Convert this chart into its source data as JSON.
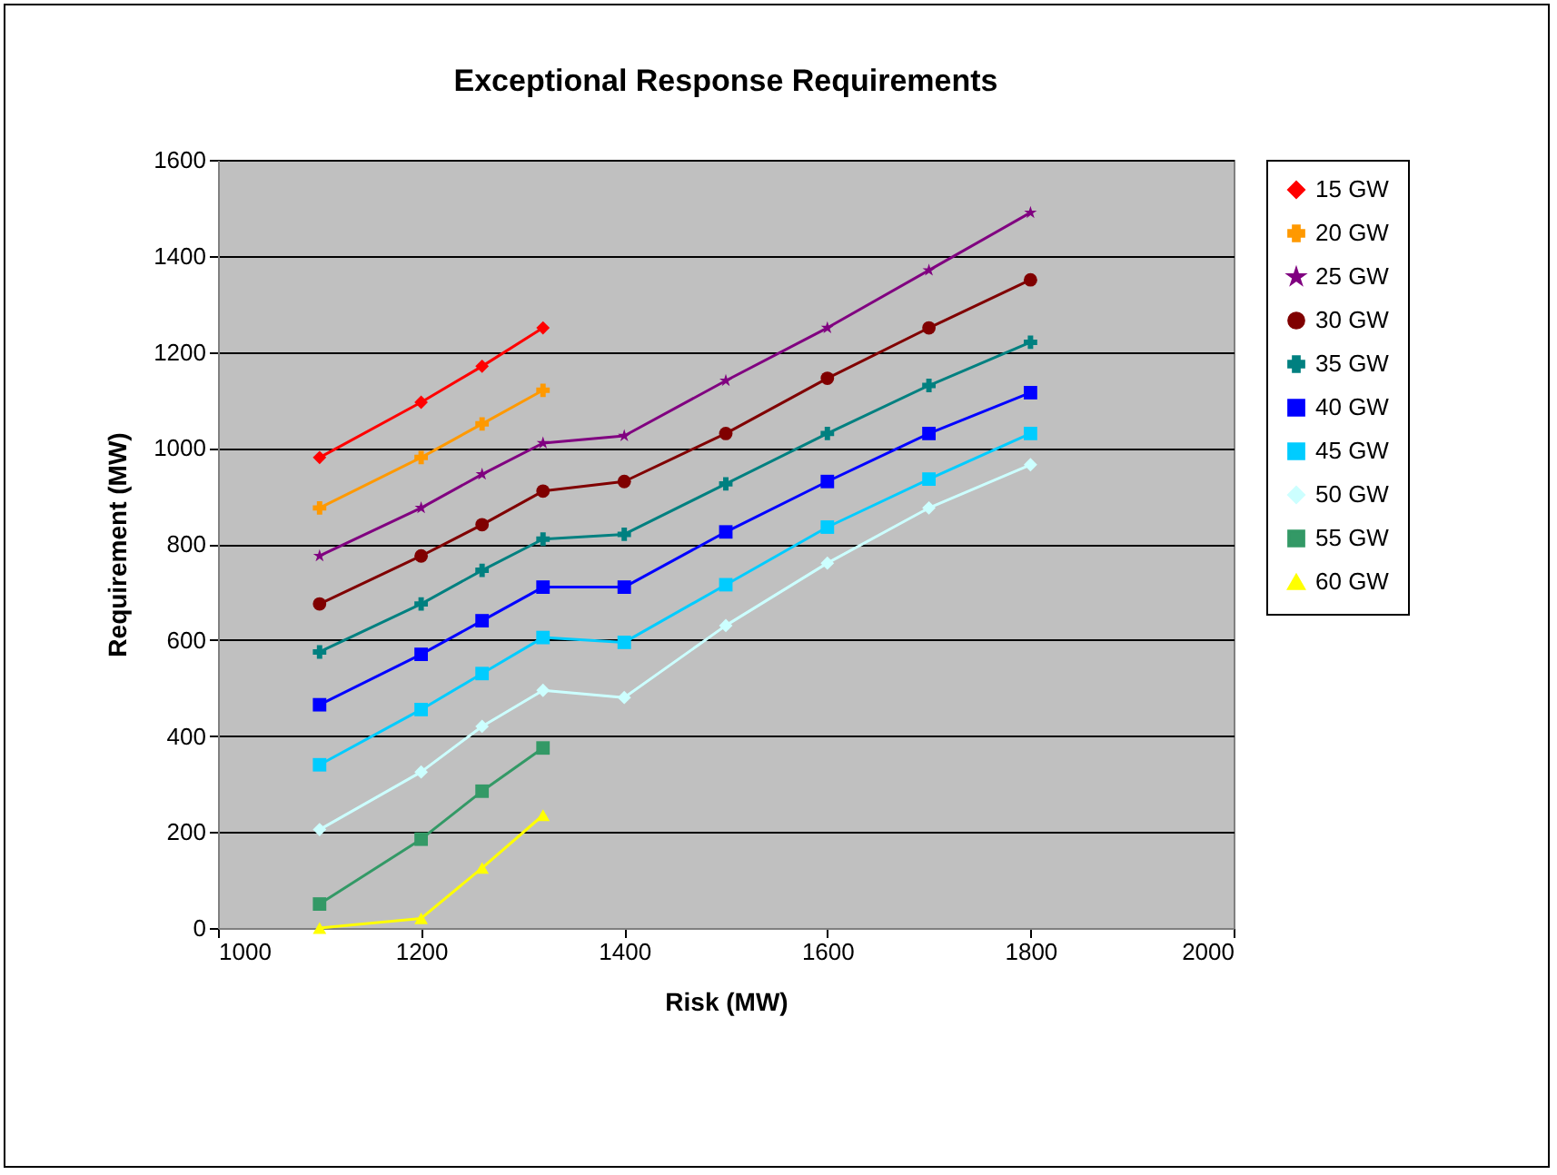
{
  "chart_data": {
    "type": "line",
    "title": "Exceptional Response Requirements",
    "xlabel": "Risk (MW)",
    "ylabel": "Requirement (MW)",
    "x": [
      1100,
      1200,
      1260,
      1320,
      1400,
      1500,
      1600,
      1700,
      1800
    ],
    "xlim": [
      1000,
      2000
    ],
    "xticks": [
      1000,
      1200,
      1400,
      1600,
      1800,
      2000
    ],
    "ylim": [
      0,
      1600
    ],
    "yticks": [
      0,
      200,
      400,
      600,
      800,
      1000,
      1200,
      1400,
      1600
    ],
    "grid": "y",
    "legend": "right",
    "line_style": "solid",
    "series": [
      {
        "name": "15 GW",
        "color": "#ff0000",
        "marker": "diamond",
        "x": [
          1100,
          1200,
          1260,
          1320
        ],
        "values": [
          980,
          1095,
          1170,
          1250
        ]
      },
      {
        "name": "20 GW",
        "color": "#ff9900",
        "marker": "cross",
        "x": [
          1100,
          1200,
          1260,
          1320
        ],
        "values": [
          875,
          980,
          1050,
          1120
        ]
      },
      {
        "name": "25 GW",
        "color": "#800080",
        "marker": "star",
        "values": [
          775,
          875,
          945,
          1010,
          1025,
          1140,
          1250,
          1370,
          1490
        ]
      },
      {
        "name": "30 GW",
        "color": "#800000",
        "marker": "circle",
        "values": [
          675,
          775,
          840,
          910,
          930,
          1030,
          1145,
          1250,
          1350
        ]
      },
      {
        "name": "35 GW",
        "color": "#008080",
        "marker": "cross",
        "values": [
          575,
          675,
          745,
          810,
          820,
          925,
          1030,
          1130,
          1220
        ]
      },
      {
        "name": "40 GW",
        "color": "#0000ff",
        "marker": "square",
        "values": [
          465,
          570,
          640,
          710,
          710,
          825,
          930,
          1030,
          1115
        ]
      },
      {
        "name": "45 GW",
        "color": "#00ccff",
        "marker": "square",
        "values": [
          340,
          455,
          530,
          605,
          595,
          715,
          835,
          935,
          1030
        ]
      },
      {
        "name": "50 GW",
        "color": "#ccffff",
        "marker": "diamond",
        "values": [
          205,
          325,
          420,
          495,
          480,
          630,
          760,
          875,
          965
        ]
      },
      {
        "name": "55 GW",
        "color": "#339966",
        "marker": "square",
        "x": [
          1100,
          1200,
          1260,
          1320
        ],
        "values": [
          50,
          185,
          285,
          375
        ]
      },
      {
        "name": "60 GW",
        "color": "#ffff00",
        "marker": "triangle",
        "x": [
          1100,
          1200,
          1260,
          1320
        ],
        "values": [
          0,
          20,
          125,
          235
        ]
      }
    ]
  }
}
